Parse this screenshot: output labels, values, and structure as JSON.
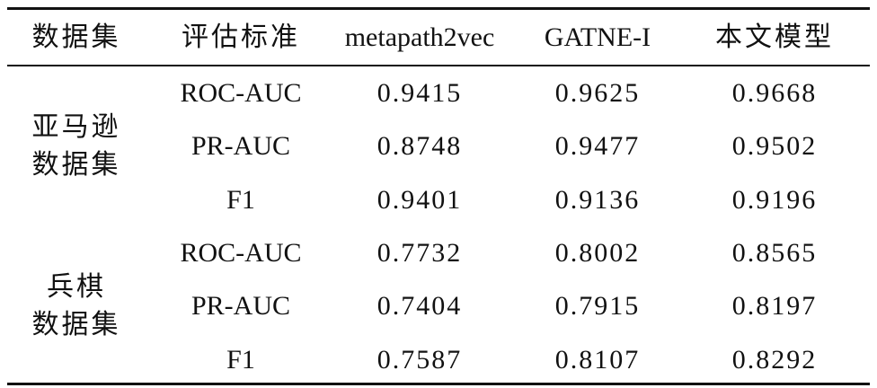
{
  "table": {
    "header": [
      "数据集",
      "评估标准",
      "metapath2vec",
      "GATNE-I",
      "本文模型"
    ],
    "groups": [
      {
        "name": [
          "亚马逊",
          "数据集"
        ],
        "rows": [
          [
            "ROC-AUC",
            "0.9415",
            "0.9625",
            "0.9668"
          ],
          [
            "PR-AUC",
            "0.8748",
            "0.9477",
            "0.9502"
          ],
          [
            "F1",
            "0.9401",
            "0.9136",
            "0.9196"
          ]
        ]
      },
      {
        "name": [
          "兵棋",
          "数据集"
        ],
        "rows": [
          [
            "ROC-AUC",
            "0.7732",
            "0.8002",
            "0.8565"
          ],
          [
            "PR-AUC",
            "0.7404",
            "0.7915",
            "0.8197"
          ],
          [
            "F1",
            "0.7587",
            "0.8107",
            "0.8292"
          ]
        ]
      }
    ]
  }
}
